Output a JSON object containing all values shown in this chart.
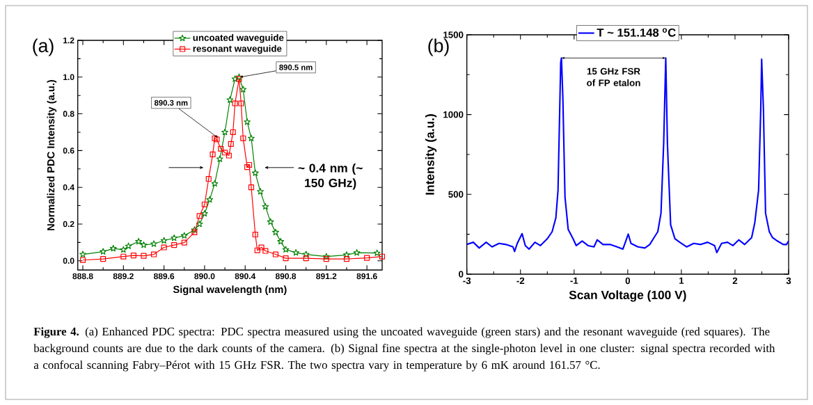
{
  "chart_data": [
    {
      "type": "line",
      "title": "(a)",
      "xlabel": "Signal wavelength (nm)",
      "ylabel": "Normalized PDC Intensity (a.u.)",
      "xlim": [
        888.75,
        891.75
      ],
      "ylim": [
        -0.05,
        1.2
      ],
      "xticks": [
        888.8,
        889.2,
        889.6,
        {
          "value": 890,
          "label": "890.0"
        },
        890.4,
        890.8,
        891.2,
        891.6
      ],
      "yticks": [
        {
          "value": 0,
          "label": "0.0"
        },
        0.2,
        0.4,
        0.6,
        0.8,
        {
          "value": 1,
          "label": "1.0"
        },
        1.2
      ],
      "legend": "top",
      "grid": false,
      "series": [
        {
          "name": "uncoated waveguide",
          "color": "#008000",
          "marker": "star",
          "x": [
            888.8,
            889.0,
            889.1,
            889.2,
            889.25,
            889.35,
            889.4,
            889.5,
            889.6,
            889.7,
            889.8,
            889.9,
            889.95,
            890.0,
            890.05,
            890.1,
            890.15,
            890.2,
            890.25,
            890.3,
            890.34,
            890.38,
            890.42,
            890.46,
            890.5,
            890.55,
            890.6,
            890.65,
            890.7,
            890.75,
            890.8,
            890.9,
            891.0,
            891.2,
            891.4,
            891.5,
            891.7
          ],
          "values": [
            0.035,
            0.05,
            0.067,
            0.06,
            0.08,
            0.105,
            0.086,
            0.092,
            0.11,
            0.124,
            0.137,
            0.168,
            0.2,
            0.257,
            0.333,
            0.42,
            0.554,
            0.7,
            0.876,
            0.99,
            1.0,
            0.933,
            0.756,
            0.667,
            0.478,
            0.377,
            0.295,
            0.212,
            0.155,
            0.105,
            0.061,
            0.044,
            0.035,
            0.023,
            0.032,
            0.044,
            0.042
          ]
        },
        {
          "name": "resonant waveguide",
          "color": "#ff0000",
          "marker": "square",
          "x": [
            888.8,
            889.0,
            889.2,
            889.3,
            889.4,
            889.5,
            889.6,
            889.7,
            889.8,
            889.9,
            889.95,
            890.0,
            890.04,
            890.08,
            890.1,
            890.12,
            890.16,
            890.2,
            890.24,
            890.26,
            890.28,
            890.3,
            890.34,
            890.36,
            890.38,
            890.42,
            890.44,
            890.46,
            890.5,
            890.52,
            890.56,
            890.6,
            890.7,
            890.8,
            891.0,
            891.2,
            891.4,
            891.6,
            891.75
          ],
          "values": [
            0.004,
            0.01,
            0.023,
            0.029,
            0.027,
            0.035,
            0.073,
            0.086,
            0.099,
            0.155,
            0.244,
            0.307,
            0.446,
            0.579,
            0.667,
            0.661,
            0.61,
            0.589,
            0.573,
            0.636,
            0.7,
            0.857,
            0.99,
            0.857,
            0.667,
            0.51,
            0.522,
            0.4,
            0.143,
            0.057,
            0.073,
            0.054,
            0.035,
            0.014,
            0.014,
            0.01,
            0.01,
            0.016,
            0.023
          ]
        }
      ],
      "annotations": [
        {
          "text": "890.3 nm",
          "x": 890.13,
          "y": 0.67
        },
        {
          "text": "890.5 nm",
          "x": 890.35,
          "y": 1.0
        },
        "~ 0.4 nm (~ 150 GHz)",
        "**Figure 4.** (a) Enhanced PDC spectra: PDC spectra measured using the uncoated waveguide (green stars) and the resonant waveguide (red squares). The background counts are due to the dark counts of the camera. (b) Signal fine spectra at the single-photon level in one cluster: signal spectra recorded with a confocal scanning Fabry–Pérot with 15 GHz FSR. The two spectra vary in temperature by 6 mK around 161.57 °C."
      ]
    },
    {
      "type": "line",
      "title": "(b)",
      "xlabel": "Scan Voltage (100 V)",
      "ylabel": "Intensity (a.u.)",
      "xlim": [
        -3,
        3
      ],
      "ylim": [
        0,
        1500
      ],
      "xticks": [
        -3,
        -2,
        -1,
        0,
        1,
        2,
        3
      ],
      "yticks": [
        0,
        500,
        1000,
        1500
      ],
      "legend": "top",
      "grid": false,
      "series": [
        {
          "name": "T ~ 151.148 $^{o}$C",
          "color": "#0000ff",
          "x": [
            -3,
            -2.88,
            -2.77,
            -2.64,
            -2.53,
            -2.4,
            -2.27,
            -2.14,
            -2.11,
            -2.06,
            -1.97,
            -1.91,
            -1.84,
            -1.73,
            -1.63,
            -1.5,
            -1.41,
            -1.34,
            -1.3,
            -1.25,
            -1.236,
            -1.21,
            -1.17,
            -1.11,
            -1.02,
            -0.96,
            -0.85,
            -0.74,
            -0.63,
            -0.57,
            -0.46,
            -0.33,
            -0.2,
            -0.09,
            0.01,
            0.06,
            0.19,
            0.32,
            0.41,
            0.49,
            0.56,
            0.62,
            0.67,
            0.709,
            0.74,
            0.8,
            0.88,
            0.97,
            1.1,
            1.23,
            1.36,
            1.49,
            1.62,
            1.66,
            1.75,
            1.86,
            1.96,
            2.07,
            2.18,
            2.31,
            2.37,
            2.44,
            2.48,
            2.497,
            2.53,
            2.57,
            2.64,
            2.7,
            2.79,
            2.9,
            2.96,
            3.0
          ],
          "values": [
            186,
            200,
            164,
            200,
            171,
            193,
            186,
            171,
            142,
            193,
            254,
            179,
            157,
            200,
            179,
            222,
            266,
            353,
            527,
            1326,
            1355,
            1108,
            484,
            280,
            222,
            179,
            208,
            179,
            171,
            215,
            186,
            186,
            171,
            157,
            251,
            193,
            171,
            164,
            186,
            229,
            266,
            382,
            818,
            1355,
            818,
            309,
            222,
            200,
            171,
            193,
            186,
            200,
            179,
            135,
            193,
            200,
            179,
            215,
            186,
            229,
            324,
            527,
            1035,
            1347,
            1035,
            382,
            266,
            229,
            208,
            186,
            186,
            208
          ]
        }
      ],
      "annotations": [
        "15 GHz FSR of FP etalon"
      ]
    }
  ]
}
